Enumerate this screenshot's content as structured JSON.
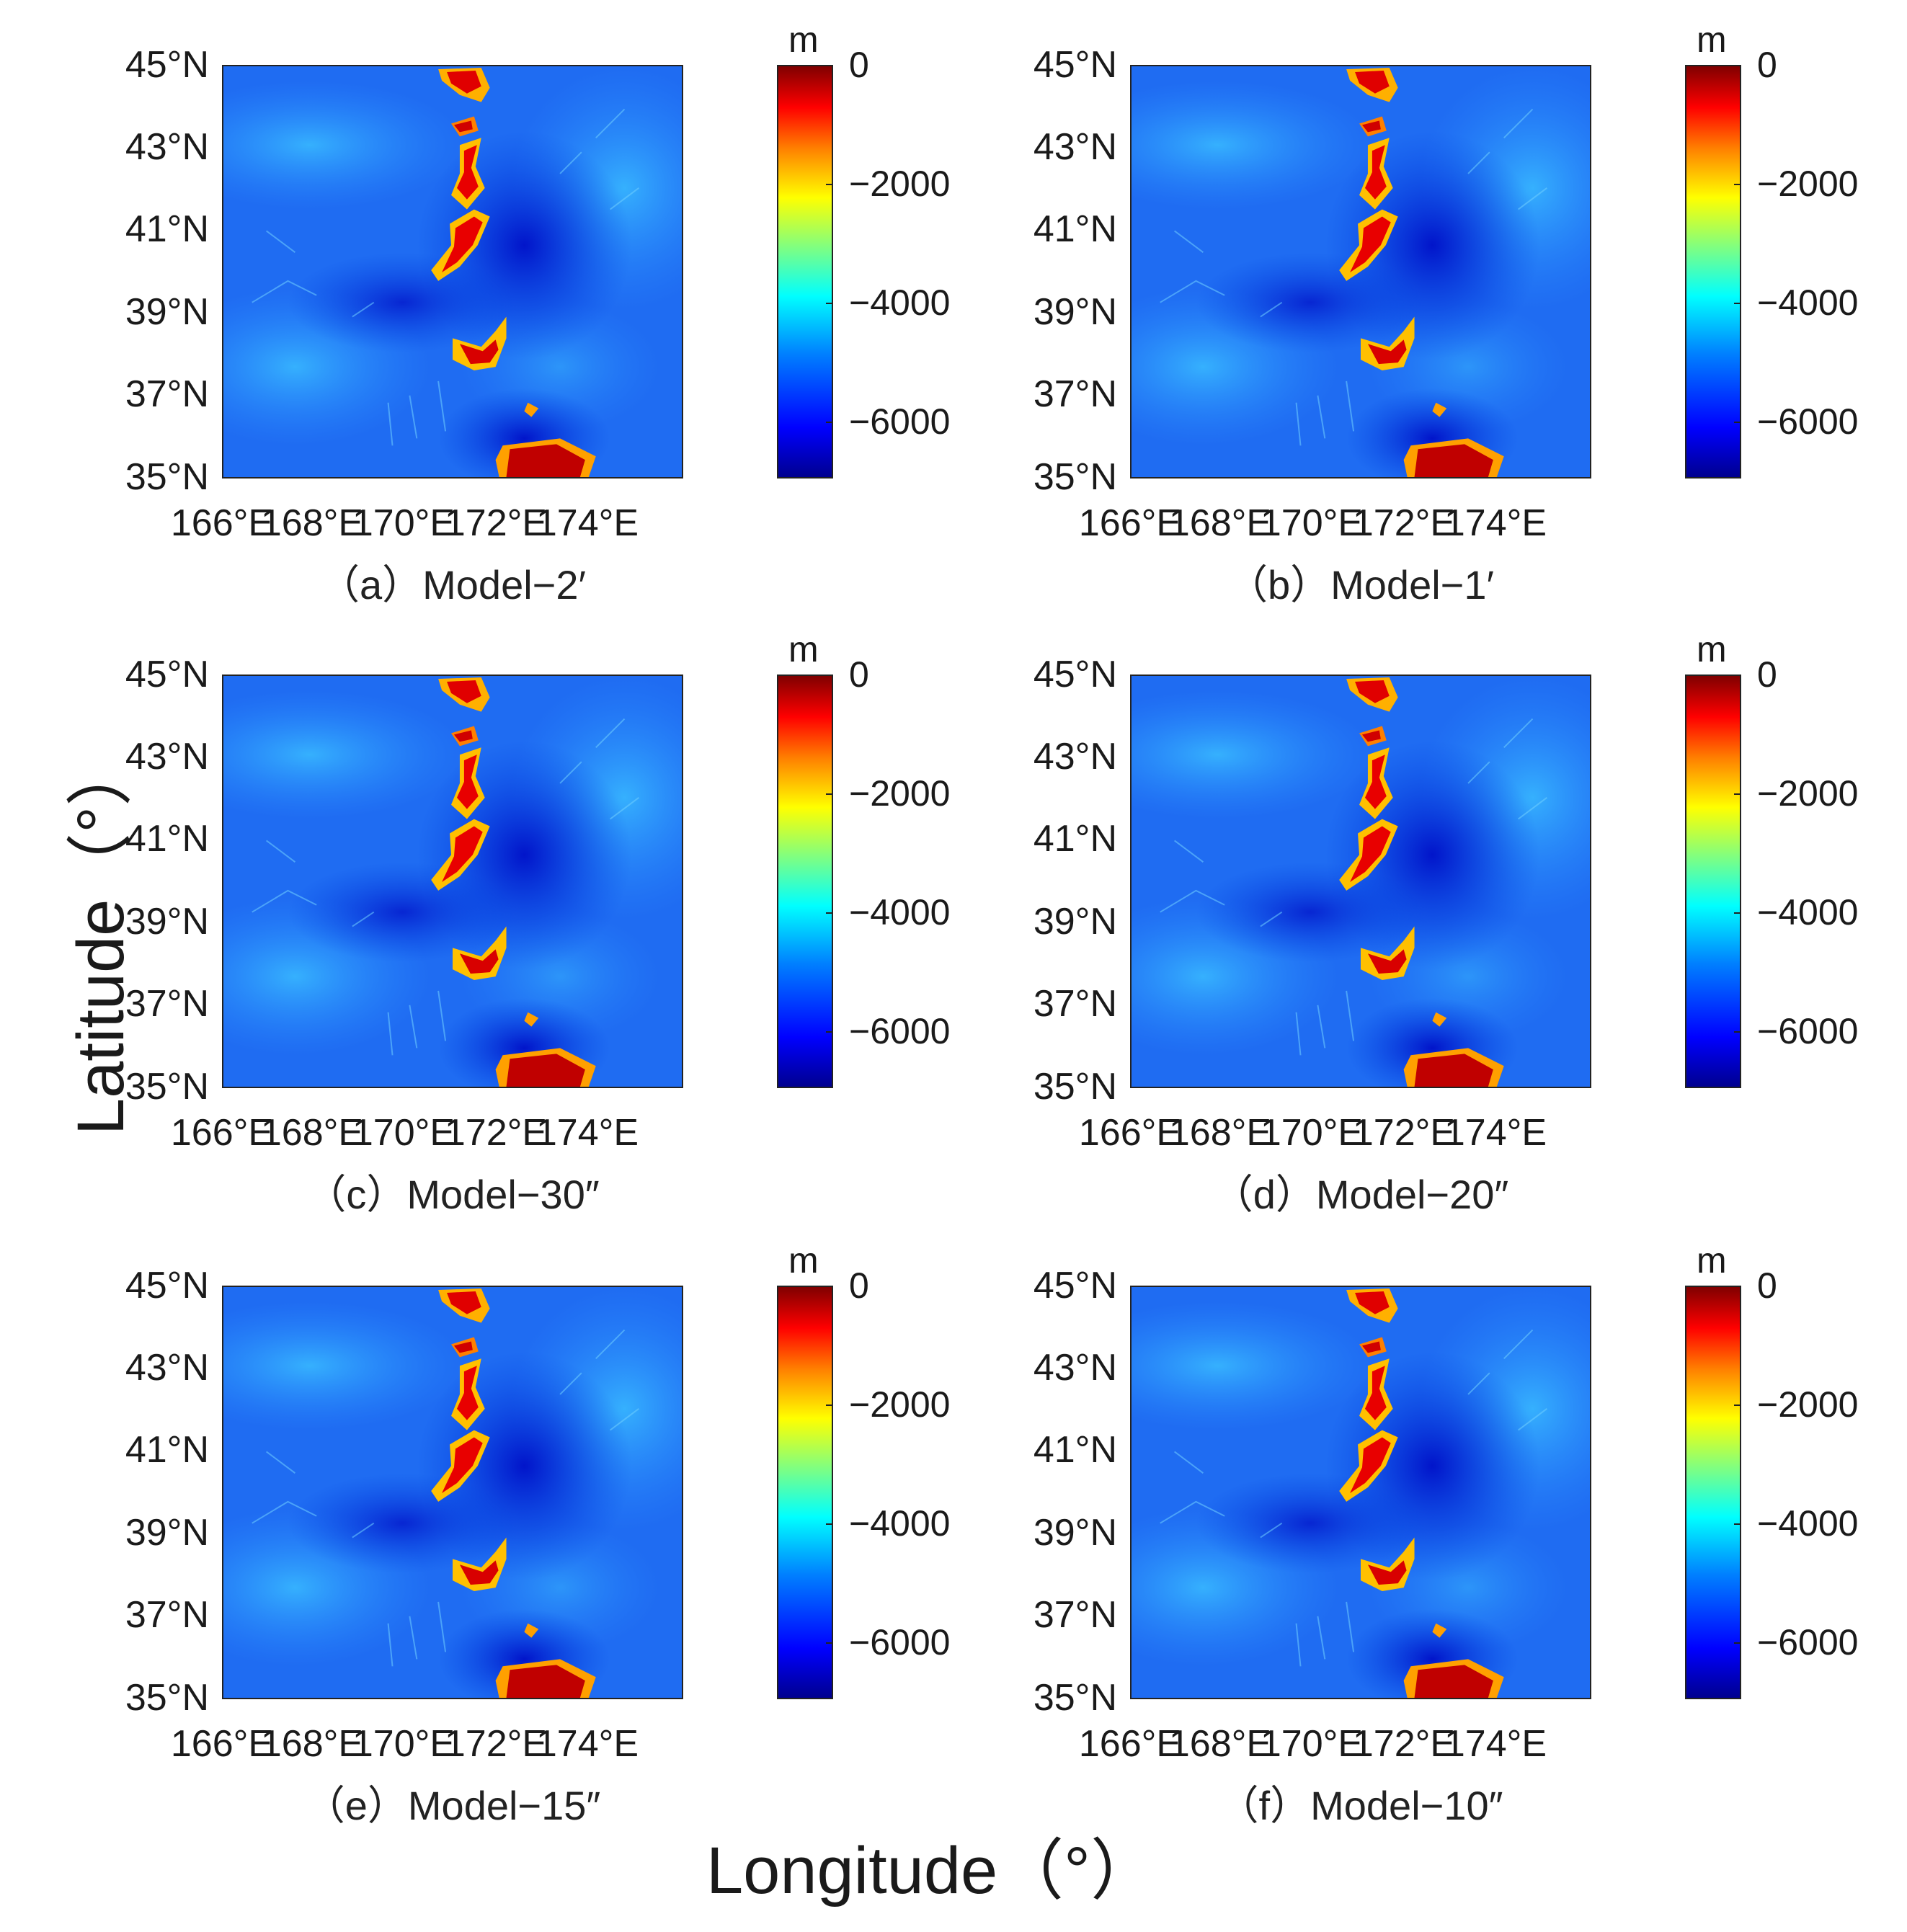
{
  "figure": {
    "axis_title_y": "Latitude（°）",
    "axis_title_x": "Longitude（°）"
  },
  "axes": {
    "lat_ticks": [
      "45°N",
      "43°N",
      "41°N",
      "39°N",
      "37°N",
      "35°N"
    ],
    "lon_ticks": [
      "166°E",
      "168°E",
      "170°E",
      "172°E",
      "174°E"
    ],
    "colorbar_unit": "m",
    "colorbar_ticks": [
      "0",
      "−2000",
      "−4000",
      "−6000"
    ]
  },
  "panels": [
    {
      "caption": "（a）Model−2′"
    },
    {
      "caption": "（b）Model−1′"
    },
    {
      "caption": "（c）Model−30″"
    },
    {
      "caption": "（d）Model−20″"
    },
    {
      "caption": "（e）Model−15″"
    },
    {
      "caption": "（f）Model−10″"
    }
  ],
  "map_data": {
    "type": "bathymetry",
    "lon_range": [
      165.9,
      174.7
    ],
    "lat_range": [
      35,
      45
    ],
    "depth_range": [
      -7000,
      0
    ],
    "unit": "m",
    "colormap": "jet"
  }
}
